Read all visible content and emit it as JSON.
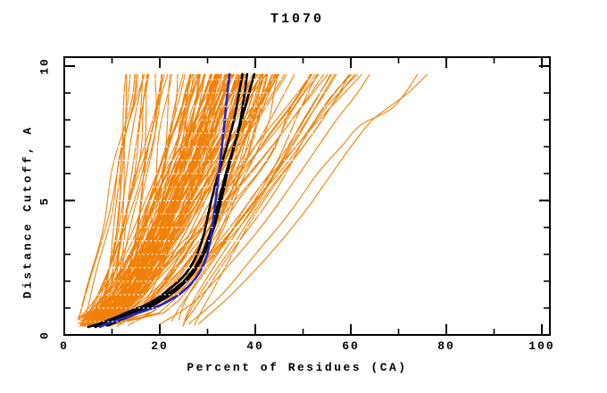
{
  "chart_data": {
    "type": "line",
    "title": "T1070",
    "xlabel": "Percent of Residues (CA)",
    "ylabel": "Distance Cutoff, A",
    "xlim": [
      0,
      100
    ],
    "ylim": [
      0,
      10
    ],
    "xticks_major": [
      0,
      20,
      40,
      60,
      80,
      100
    ],
    "xticks_minor": [
      10,
      30,
      50,
      70,
      90
    ],
    "yticks_major": [
      0,
      5,
      10
    ],
    "yticks_minor": [
      1,
      2,
      3,
      4,
      6,
      7,
      8,
      9
    ],
    "grid": false,
    "legend": "none",
    "colors": {
      "ensemble": "#F08109",
      "highlight": "#000000",
      "reference": "#2222CC",
      "frame": "#000000",
      "background": "#FFFFFF",
      "dotted_rows": "#FFFFFF"
    },
    "curve_y_range": [
      0.3,
      9.7
    ],
    "dotted_rows_step": 0.5,
    "series": [
      {
        "name": "highlight-model-1",
        "role": "highlight",
        "color": "#000000",
        "width": 2.6,
        "points": [
          [
            5.0,
            0.3
          ],
          [
            7,
            0.4
          ],
          [
            10,
            0.6
          ],
          [
            14,
            0.9
          ],
          [
            18,
            1.2
          ],
          [
            22,
            1.7
          ],
          [
            25.5,
            2.3
          ],
          [
            27.8,
            3.0
          ],
          [
            29.3,
            3.8
          ],
          [
            30.4,
            4.7
          ],
          [
            31.5,
            5.5
          ],
          [
            32.8,
            6.3
          ],
          [
            34.2,
            7.1
          ],
          [
            35.4,
            7.9
          ],
          [
            36.4,
            8.8
          ],
          [
            37.3,
            9.7
          ]
        ]
      },
      {
        "name": "highlight-model-2",
        "role": "highlight",
        "color": "#000000",
        "width": 2.6,
        "points": [
          [
            6.5,
            0.3
          ],
          [
            9,
            0.48
          ],
          [
            13,
            0.75
          ],
          [
            17,
            1.05
          ],
          [
            21,
            1.45
          ],
          [
            25,
            2.0
          ],
          [
            28,
            2.7
          ],
          [
            30,
            3.5
          ],
          [
            31.5,
            4.4
          ],
          [
            32.8,
            5.3
          ],
          [
            34.3,
            6.3
          ],
          [
            36,
            7.3
          ],
          [
            37.6,
            8.3
          ],
          [
            39,
            9.2
          ],
          [
            39.8,
            9.7
          ]
        ]
      },
      {
        "name": "highlight-model-3",
        "role": "highlight",
        "color": "#000000",
        "width": 2.6,
        "points": [
          [
            9.0,
            0.35
          ],
          [
            11,
            0.5
          ],
          [
            15,
            0.8
          ],
          [
            19,
            1.15
          ],
          [
            23,
            1.6
          ],
          [
            26.5,
            2.2
          ],
          [
            29,
            2.9
          ],
          [
            30.8,
            3.7
          ],
          [
            32.3,
            4.6
          ],
          [
            33.6,
            5.6
          ],
          [
            34.8,
            6.5
          ],
          [
            36,
            7.3
          ],
          [
            36.9,
            8.0
          ],
          [
            37.6,
            8.8
          ],
          [
            38.3,
            9.7
          ]
        ]
      },
      {
        "name": "reference-model",
        "role": "reference",
        "color": "#2222CC",
        "width": 2.6,
        "points": [
          [
            7.5,
            0.3
          ],
          [
            9,
            0.42
          ],
          [
            12,
            0.6
          ],
          [
            16,
            0.85
          ],
          [
            20,
            1.1
          ],
          [
            24,
            1.5
          ],
          [
            27,
            2.0
          ],
          [
            29,
            2.55
          ],
          [
            30.2,
            3.2
          ],
          [
            31,
            4.0
          ],
          [
            31.7,
            5.0
          ],
          [
            32.4,
            6.0
          ],
          [
            33.0,
            7.0
          ],
          [
            33.6,
            8.0
          ],
          [
            34.1,
            8.9
          ],
          [
            34.6,
            9.7
          ]
        ]
      }
    ],
    "ensemble": {
      "description": "server model curves",
      "color": "#F08109",
      "width": 1.1,
      "groups": [
        {
          "name": "main-fan",
          "count": 118,
          "seed": 7,
          "x_start": [
            3,
            10
          ],
          "x_end": [
            12,
            46
          ],
          "shape": [
            0.35,
            0.95
          ]
        },
        {
          "name": "mid-right",
          "count": 16,
          "seed": 21,
          "x_start": [
            5,
            14
          ],
          "x_end": [
            44,
            58
          ],
          "shape": [
            0.5,
            0.85
          ]
        },
        {
          "name": "lower-right-steep",
          "count": 6,
          "seed": 33,
          "x_start": [
            21,
            28
          ],
          "x_end": [
            50,
            64
          ],
          "shape": [
            0.9,
            1.25
          ]
        }
      ],
      "outlier_curves": [
        {
          "name": "outlier-a",
          "points": [
            [
              26,
              0.4
            ],
            [
              33,
              1.5
            ],
            [
              40,
              3.0
            ],
            [
              47,
              4.5
            ],
            [
              53,
              6.0
            ],
            [
              58,
              7.0
            ],
            [
              62,
              7.8
            ],
            [
              68,
              8.35
            ],
            [
              71,
              8.9
            ],
            [
              74,
              9.7
            ]
          ]
        },
        {
          "name": "outlier-b",
          "points": [
            [
              28,
              0.4
            ],
            [
              35,
              1.5
            ],
            [
              43,
              3.0
            ],
            [
              50,
              4.5
            ],
            [
              56,
              6.0
            ],
            [
              60,
              7.0
            ],
            [
              64,
              7.9
            ],
            [
              67,
              8.35
            ],
            [
              72,
              9.0
            ],
            [
              76,
              9.7
            ]
          ]
        },
        {
          "name": "outlier-c",
          "points": [
            [
              20,
              0.4
            ],
            [
              27,
              1.2
            ],
            [
              34,
              2.5
            ],
            [
              42,
              4.2
            ],
            [
              50,
              6.2
            ],
            [
              57,
              8.0
            ],
            [
              61,
              8.9
            ],
            [
              64,
              9.7
            ]
          ]
        }
      ]
    }
  }
}
